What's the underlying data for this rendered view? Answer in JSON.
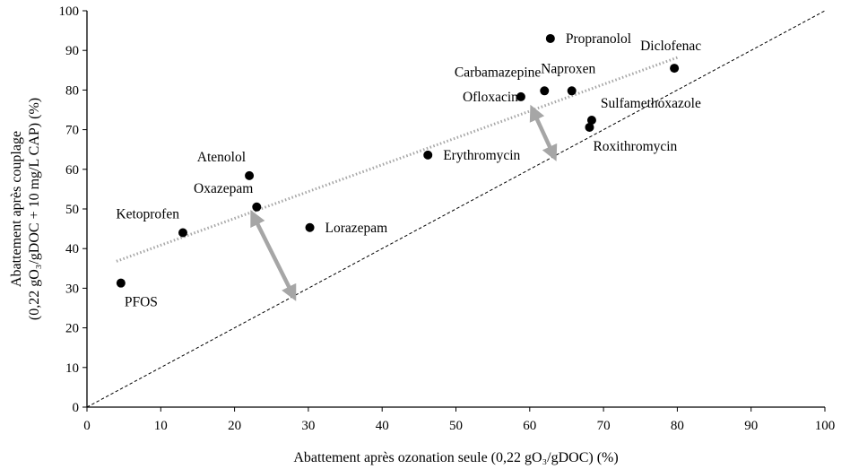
{
  "chart_data": {
    "type": "scatter",
    "xlabel": "Abattement après ozonation seule (0,22 gO₃/gDOC) (%)",
    "ylabel_line1": "Abattement après couplage",
    "ylabel_line2": "(0,22 gO₃/gDOC + 10 mg/L CAP) (%)",
    "xlim": [
      0,
      100
    ],
    "ylim": [
      0,
      100
    ],
    "xticks": [
      0,
      10,
      20,
      30,
      40,
      50,
      60,
      70,
      80,
      90,
      100
    ],
    "yticks": [
      0,
      10,
      20,
      30,
      40,
      50,
      60,
      70,
      80,
      90,
      100
    ],
    "grid": false,
    "points": [
      {
        "label": "PFOS",
        "x": 4.6,
        "y": 31.3,
        "label_pos": "below-right"
      },
      {
        "label": "Ketoprofen",
        "x": 13.0,
        "y": 44.0,
        "label_pos": "above-left"
      },
      {
        "label": "Atenolol",
        "x": 22.0,
        "y": 58.4,
        "label_pos": "above-left"
      },
      {
        "label": "Oxazepam",
        "x": 23.0,
        "y": 50.5,
        "label_pos": "above-left"
      },
      {
        "label": "Lorazepam",
        "x": 30.2,
        "y": 45.3,
        "label_pos": "right"
      },
      {
        "label": "Erythromycin",
        "x": 46.2,
        "y": 63.6,
        "label_pos": "right"
      },
      {
        "label": "Ofloxacin",
        "x": 58.8,
        "y": 78.3,
        "label_pos": "left"
      },
      {
        "label": "Carbamazepine",
        "x": 62.0,
        "y": 79.8,
        "label_pos": "above-left"
      },
      {
        "label": "Naproxen",
        "x": 65.7,
        "y": 79.8,
        "label_pos": "above"
      },
      {
        "label": "Propranolol",
        "x": 62.8,
        "y": 93.0,
        "label_pos": "right"
      },
      {
        "label": "Sulfamethoxazole",
        "x": 68.4,
        "y": 72.4,
        "label_pos": "above-right"
      },
      {
        "label": "Roxithromycin",
        "x": 68.1,
        "y": 70.6,
        "label_pos": "below-right"
      },
      {
        "label": "Diclofenac",
        "x": 79.6,
        "y": 85.5,
        "label_pos": "above"
      }
    ],
    "reference_line": {
      "style": "dashed",
      "from": [
        0,
        0
      ],
      "to": [
        100,
        100
      ],
      "color": "#000000"
    },
    "trend_line": {
      "style": "dotted",
      "from": [
        4,
        36.8
      ],
      "to": [
        80,
        88.2
      ],
      "color": "#a6a6a6"
    },
    "arrows": [
      {
        "from": [
          22.5,
          48.5
        ],
        "to": [
          28.0,
          28.0
        ],
        "color": "#a6a6a6",
        "double_headed": true
      },
      {
        "from": [
          60.4,
          75.0
        ],
        "to": [
          63.3,
          63.3
        ],
        "color": "#a6a6a6",
        "double_headed": true
      }
    ]
  }
}
